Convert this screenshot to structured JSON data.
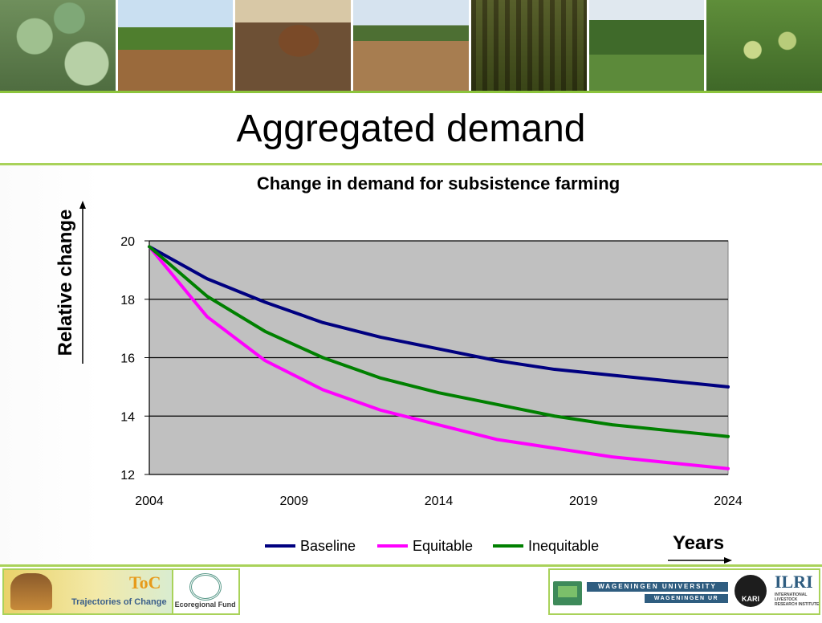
{
  "slide": {
    "title": "Aggregated demand",
    "y_axis_caption": "Relative change",
    "x_axis_caption": "Years"
  },
  "chart_data": {
    "type": "line",
    "title": "Change in demand for subsistence farming",
    "xlabel": "Years",
    "ylabel": "Relative change",
    "x": [
      2004,
      2006,
      2008,
      2010,
      2012,
      2014,
      2016,
      2018,
      2020,
      2022,
      2024
    ],
    "xlim": [
      2004,
      2024
    ],
    "ylim": [
      12,
      20
    ],
    "xticks": [
      2004,
      2009,
      2014,
      2019,
      2024
    ],
    "yticks": [
      12,
      14,
      16,
      18,
      20
    ],
    "grid": "horizontal",
    "legend": "bottom",
    "plot_background": "#c0c0c0",
    "series": [
      {
        "name": "Baseline",
        "color": "#000080",
        "values": [
          19.8,
          18.7,
          17.9,
          17.2,
          16.7,
          16.3,
          15.9,
          15.6,
          15.4,
          15.2,
          15.0
        ]
      },
      {
        "name": "Equitable",
        "color": "#ff00ff",
        "values": [
          19.8,
          17.4,
          15.9,
          14.9,
          14.2,
          13.7,
          13.2,
          12.9,
          12.6,
          12.4,
          12.2
        ]
      },
      {
        "name": "Inequitable",
        "color": "#008000",
        "values": [
          19.8,
          18.1,
          16.9,
          16.0,
          15.3,
          14.8,
          14.4,
          14.0,
          13.7,
          13.5,
          13.3
        ]
      }
    ]
  },
  "footer": {
    "toc_logo": "ToC",
    "toc_text": "Trajectories of Change",
    "eco_text": "Ecoregional Fund",
    "wur_top": "WAGENINGEN UNIVERSITY",
    "wur_bottom": "WAGENINGEN UR",
    "kari": "KARI",
    "ilri": "ILRI",
    "ilri_sub": "INTERNATIONAL LIVESTOCK RESEARCH INSTITUTE"
  }
}
